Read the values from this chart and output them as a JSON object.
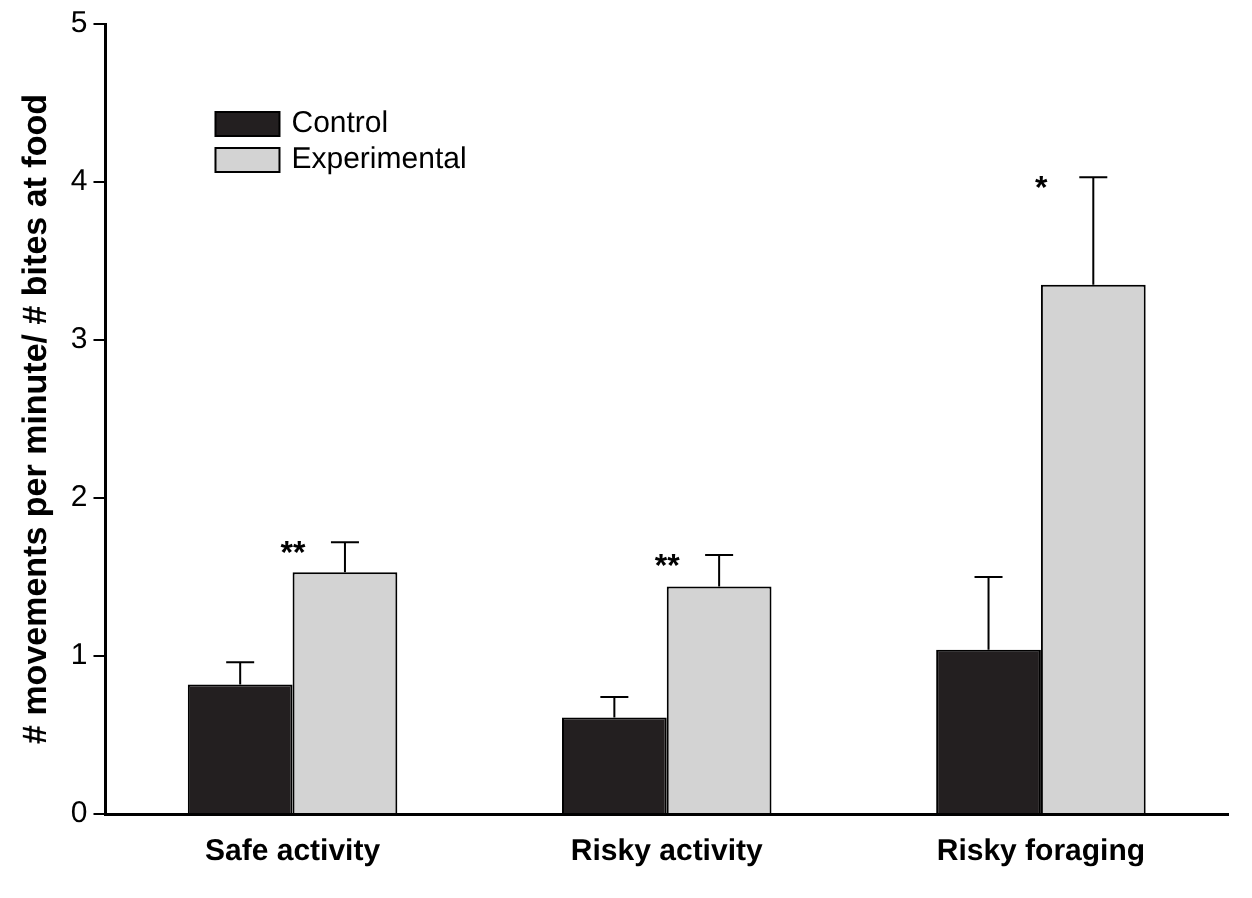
{
  "chart_data": {
    "type": "bar",
    "ylabel": "# movements per minute/ # bites at food",
    "categories": [
      "Safe activity",
      "Risky activity",
      "Risky foraging"
    ],
    "series": [
      {
        "name": "Control",
        "color": "#231f20",
        "values": [
          0.82,
          0.61,
          1.04
        ],
        "errors": [
          [
            0.82,
            0.96
          ],
          [
            0.61,
            0.74
          ],
          [
            1.04,
            1.5
          ]
        ]
      },
      {
        "name": "Experimental",
        "color": "#d3d3d3",
        "values": [
          1.53,
          1.44,
          3.35
        ],
        "errors": [
          [
            1.53,
            1.72
          ],
          [
            1.44,
            1.64
          ],
          [
            3.35,
            4.03
          ]
        ]
      }
    ],
    "ylim": [
      0,
      5
    ],
    "yticks": [
      0,
      1,
      2,
      3,
      4,
      5
    ],
    "legend": "top left",
    "grid": false,
    "annotations": [
      "**",
      "**",
      "*"
    ]
  }
}
